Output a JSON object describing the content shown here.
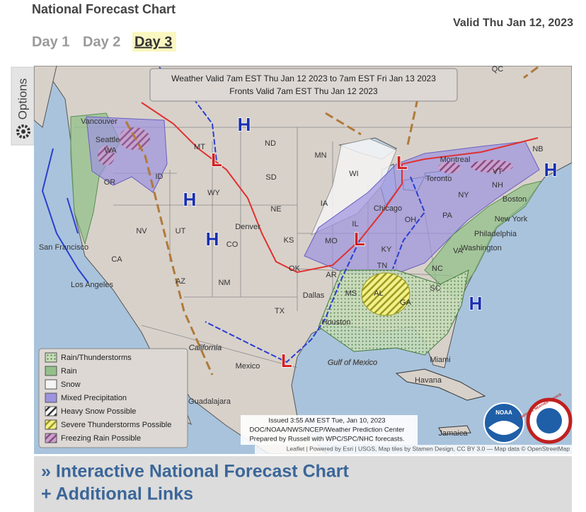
{
  "header": {
    "title": "National Forecast Chart",
    "valid": "Valid Thu Jan 12, 2023"
  },
  "tabs": [
    "Day 1",
    "Day 2",
    "Day 3"
  ],
  "options": "Options",
  "map": {
    "valid_lines": [
      "Weather Valid 7am EST Thu Jan 12 2023 to 7am EST Fri Jan 13 2023",
      "Fronts Valid 7am EST Thu Jan 12 2023"
    ],
    "labels": [
      "QC",
      "Vancouver",
      "Seattle",
      "WA",
      "OR",
      "ID",
      "MT",
      "ND",
      "SD",
      "WY",
      "NE",
      "MN",
      "WI",
      "IA",
      "NV",
      "UT",
      "Denver",
      "CO",
      "KS",
      "MO",
      "IL",
      "OH",
      "KY",
      "TN",
      "AR",
      "OK",
      "TX",
      "NM",
      "AZ",
      "CA",
      "San Francisco",
      "Los Angeles",
      "MS",
      "AL",
      "GA",
      "SC",
      "NC",
      "VA",
      "PA",
      "NY",
      "VT",
      "NH",
      "NB",
      "Montreal",
      "Toronto",
      "Boston",
      "New York",
      "Philadelphia",
      "Washington",
      "Chicago",
      "Dallas",
      "Houston",
      "Miami",
      "Havana",
      "Mexico",
      "Guadalajara",
      "California",
      "Gulf of Mexico",
      "Jamaica"
    ],
    "pressure_centers": [
      "H",
      "H",
      "H",
      "H",
      "H",
      "L",
      "L",
      "L",
      "L"
    ],
    "legend": [
      "Rain/Thunderstorms",
      "Rain",
      "Snow",
      "Mixed Precipitation",
      "Heavy Snow Possible",
      "Severe Thunderstorms Possible",
      "Freezing Rain Possible"
    ],
    "issued": [
      "Issued 3:55 AM EST Tue, Jan 10, 2023",
      "DOC/NOAA/NWS/NCEP/Weather Prediction Center",
      "Prepared by Russell with WPC/SPC/NHC forecasts."
    ],
    "attribution": "Leaflet | Powered by Esri | USGS, Map tiles by Stamen Design, CC BY 3.0 — Map data © OpenStreetMap",
    "logos": [
      "NOAA",
      "NATIONAL WEATHER SERVICE"
    ]
  },
  "links": [
    "» Interactive National Forecast Chart",
    "+ Additional Links"
  ]
}
